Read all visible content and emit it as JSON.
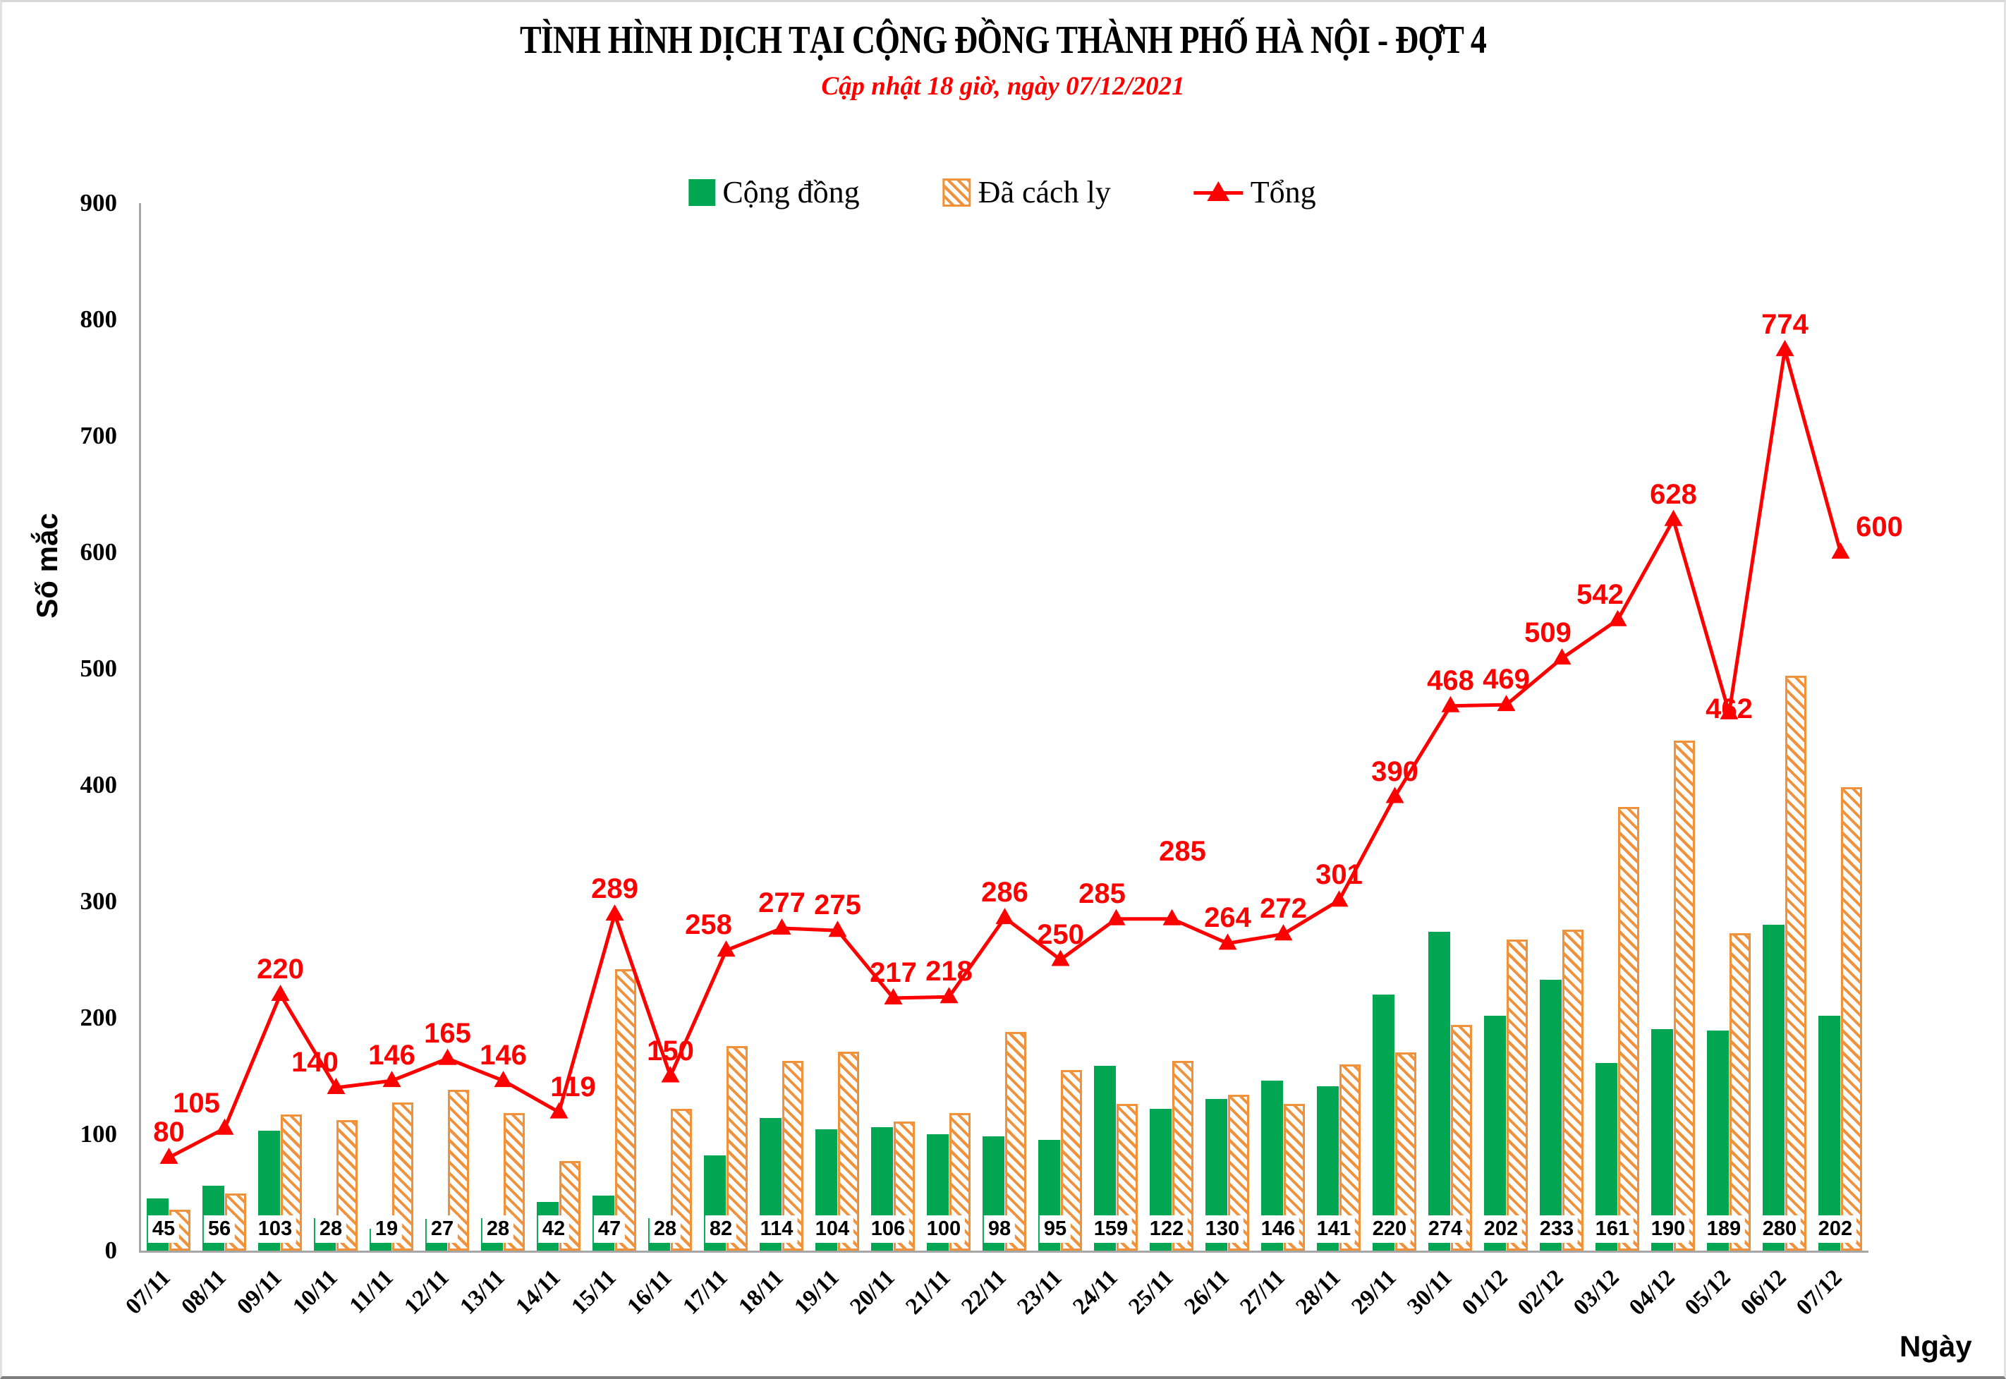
{
  "header": {
    "title": "TÌNH HÌNH DỊCH TẠI CỘNG ĐỒNG THÀNH PHỐ HÀ NỘI - ĐỢT 4",
    "subtitle": "Cập nhật 18 giờ, ngày 07/12/2021"
  },
  "legend": {
    "items": [
      {
        "label": "Cộng đồng",
        "swatch": "solid-green"
      },
      {
        "label": "Đã cách ly",
        "swatch": "hatched-orange"
      },
      {
        "label": "Tổng",
        "swatch": "red-line-triangle"
      }
    ]
  },
  "y_axis": {
    "label": "Số mắc",
    "ticks": [
      0,
      100,
      200,
      300,
      400,
      500,
      600,
      700,
      800,
      900
    ]
  },
  "x_axis": {
    "label": "Ngày"
  },
  "colors": {
    "green": "#00A651",
    "orange": "#F0913C",
    "red": "#FF0000",
    "axis": "#A6A6A6"
  },
  "chart_data": {
    "type": "bar",
    "subtype": "grouped-bars-with-line",
    "title": "TÌNH HÌNH DỊCH TẠI CỘNG ĐỒNG THÀNH PHỐ HÀ NỘI - ĐỢT 4",
    "xlabel": "Ngày",
    "ylabel": "Số mắc",
    "ylim": [
      0,
      900
    ],
    "ytick_step": 100,
    "grid": false,
    "legend_position": "top-center",
    "categories": [
      "07/11",
      "08/11",
      "09/11",
      "10/11",
      "11/11",
      "12/11",
      "13/11",
      "14/11",
      "15/11",
      "16/11",
      "17/11",
      "18/11",
      "19/11",
      "20/11",
      "21/11",
      "22/11",
      "23/11",
      "24/11",
      "25/11",
      "26/11",
      "27/11",
      "28/11",
      "29/11",
      "30/11",
      "01/12",
      "02/12",
      "03/12",
      "04/12",
      "05/12",
      "06/12",
      "07/12"
    ],
    "series": [
      {
        "name": "Cộng đồng",
        "type": "bar",
        "style": "solid",
        "color": "#00A651",
        "labels_shown": true,
        "values": [
          45,
          56,
          103,
          28,
          19,
          27,
          28,
          42,
          47,
          28,
          82,
          114,
          104,
          106,
          100,
          98,
          95,
          159,
          122,
          130,
          146,
          141,
          220,
          274,
          202,
          233,
          161,
          190,
          189,
          280,
          202
        ]
      },
      {
        "name": "Đã cách ly",
        "type": "bar",
        "style": "hatched",
        "color": "#F0913C",
        "labels_shown": false,
        "values": [
          35,
          49,
          117,
          112,
          127,
          138,
          118,
          77,
          242,
          122,
          176,
          163,
          171,
          111,
          118,
          188,
          155,
          126,
          163,
          134,
          126,
          160,
          170,
          194,
          267,
          276,
          381,
          438,
          273,
          494,
          398
        ]
      },
      {
        "name": "Tổng",
        "type": "line",
        "marker": "triangle",
        "color": "#FF0000",
        "labels_shown": true,
        "values": [
          80,
          105,
          220,
          140,
          146,
          165,
          146,
          119,
          289,
          150,
          258,
          277,
          275,
          217,
          218,
          286,
          250,
          285,
          285,
          264,
          272,
          301,
          390,
          468,
          469,
          509,
          542,
          628,
          462,
          774,
          600
        ]
      }
    ],
    "line_label_offsets": {
      "1": [
        -40,
        0
      ],
      "3": [
        -30,
        0
      ],
      "7": [
        20,
        0
      ],
      "10": [
        -25,
        0
      ],
      "17": [
        -20,
        0
      ],
      "18": [
        15,
        -60
      ],
      "25": [
        -20,
        0
      ],
      "26": [
        -25,
        0
      ],
      "28": [
        0,
        30
      ],
      "30": [
        55,
        0
      ]
    }
  }
}
